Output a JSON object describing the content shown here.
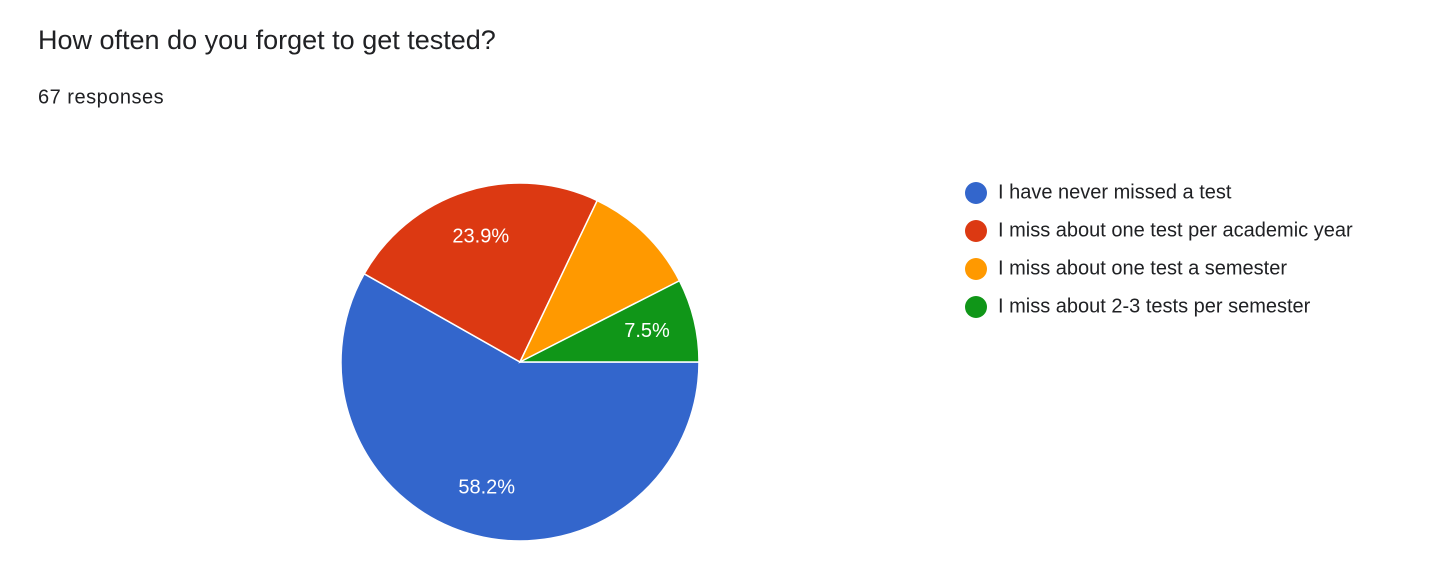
{
  "chart_data": {
    "type": "pie",
    "title": "How often do you forget to get tested?",
    "subtitle": "67 responses",
    "categories": [
      "I have never missed a test",
      "I miss about one test per academic year",
      "I miss about one test a semester",
      "I miss about 2-3 tests per semester"
    ],
    "values": [
      58.2,
      23.9,
      10.4,
      7.5
    ],
    "value_labels": [
      "58.2%",
      "23.9%",
      null,
      "7.5%"
    ],
    "colors": [
      "#3366cc",
      "#dc3912",
      "#ff9900",
      "#109618"
    ],
    "legend": "right"
  }
}
